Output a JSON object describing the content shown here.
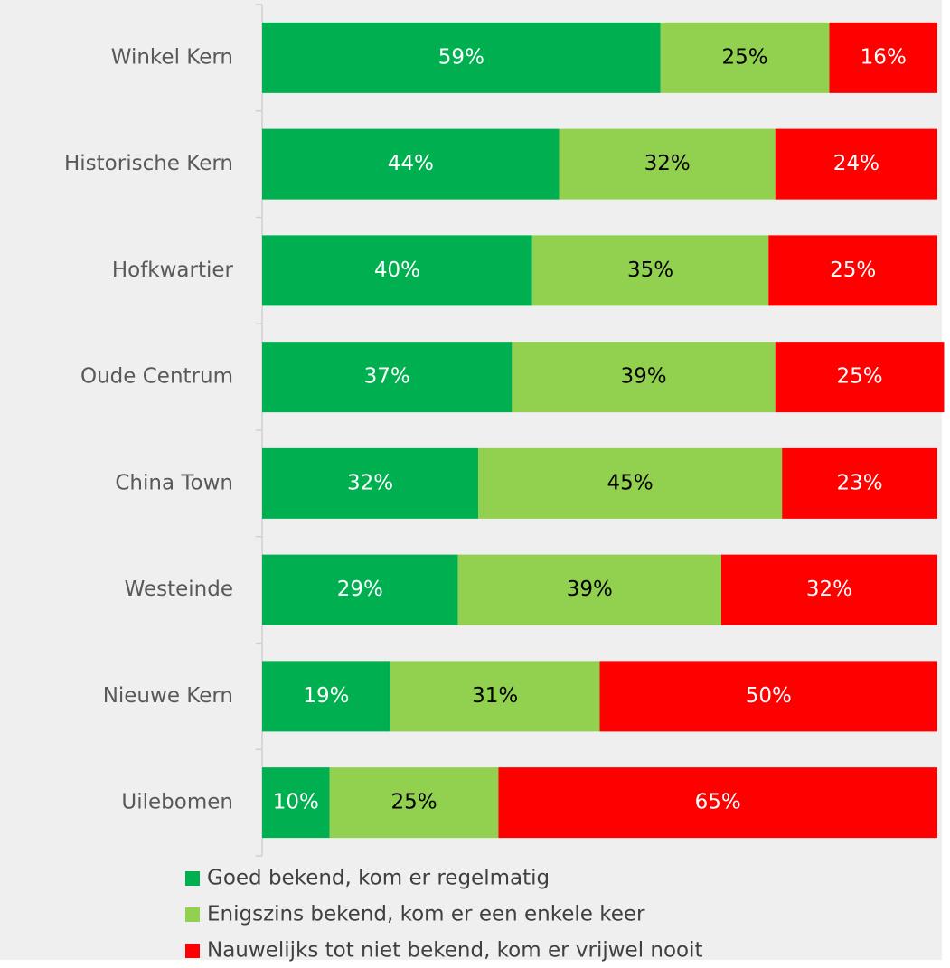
{
  "chart_data": {
    "type": "stacked-bar-horizontal",
    "categories": [
      "Winkel Kern",
      "Historische Kern",
      "Hofkwartier",
      "Oude Centrum",
      "China Town",
      "Westeinde",
      "Nieuwe Kern",
      "Uilebomen"
    ],
    "series": [
      {
        "name": "Goed bekend, kom er regelmatig",
        "color": "#00b050",
        "label_color": "#ffffff",
        "values": [
          59,
          44,
          40,
          37,
          32,
          29,
          19,
          10
        ],
        "value_labels": [
          "59%",
          "44%",
          "40%",
          "37%",
          "32%",
          "29%",
          "19%",
          "10%"
        ]
      },
      {
        "name": "Enigszins bekend, kom er een enkele keer",
        "color": "#92d050",
        "label_color": "#000000",
        "values": [
          25,
          32,
          35,
          39,
          45,
          39,
          31,
          25
        ],
        "value_labels": [
          "25%",
          "32%",
          "35%",
          "39%",
          "45%",
          "39%",
          "31%",
          "25%"
        ]
      },
      {
        "name": "Nauwelijks tot niet bekend, kom er vrijwel nooit",
        "color": "#ff0000",
        "label_color": "#ffffff",
        "values": [
          16,
          24,
          25,
          25,
          23,
          32,
          50,
          65
        ],
        "value_labels": [
          "16%",
          "24%",
          "25%",
          "25%",
          "23%",
          "32%",
          "50%",
          "65%"
        ]
      }
    ],
    "xlim": [
      0,
      100
    ],
    "legend": "bottom"
  }
}
